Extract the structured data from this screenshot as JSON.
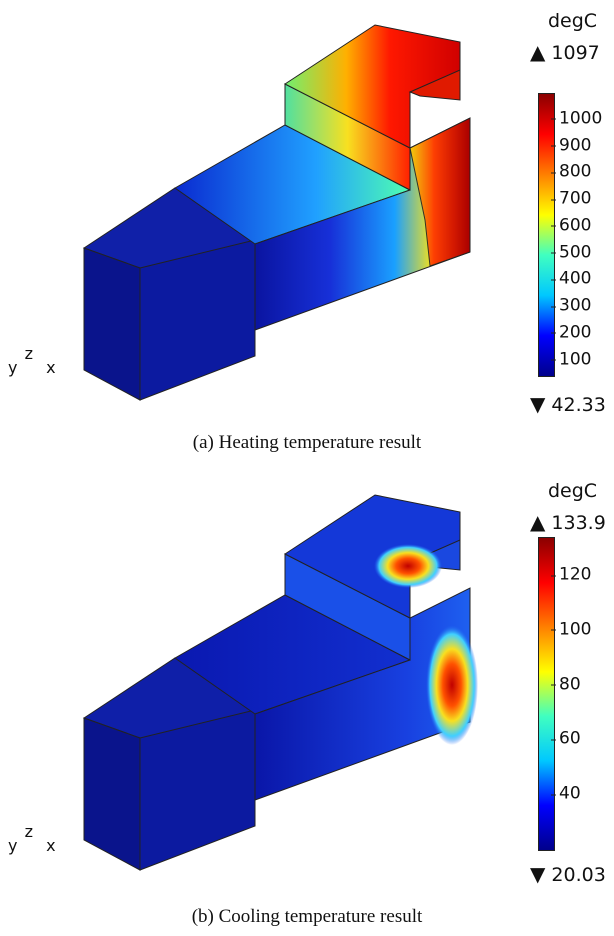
{
  "panels": [
    {
      "id": "a",
      "unit": "degC",
      "max_label": "1097",
      "min_label": "42.33",
      "ticks": [
        "1000",
        "900",
        "800",
        "700",
        "600",
        "500",
        "400",
        "300",
        "200",
        "100"
      ],
      "tick_values": [
        1000,
        900,
        800,
        700,
        600,
        500,
        400,
        300,
        200,
        100
      ],
      "range": [
        42.33,
        1097
      ],
      "caption": "(a) Heating temperature result"
    },
    {
      "id": "b",
      "unit": "degC",
      "max_label": "133.9",
      "min_label": "20.03",
      "ticks": [
        "120",
        "100",
        "80",
        "60",
        "40"
      ],
      "tick_values": [
        120,
        100,
        80,
        60,
        40
      ],
      "range": [
        20.03,
        133.9
      ],
      "caption": "(b) Cooling temperature result"
    }
  ],
  "axis_triad": {
    "y": "y",
    "z": "z",
    "x": "x"
  },
  "colors": {
    "colormap": [
      "#00008b",
      "#0000ff",
      "#00c8ff",
      "#40ffc0",
      "#ffff00",
      "#ff8000",
      "#ff0000",
      "#8b0000"
    ]
  }
}
